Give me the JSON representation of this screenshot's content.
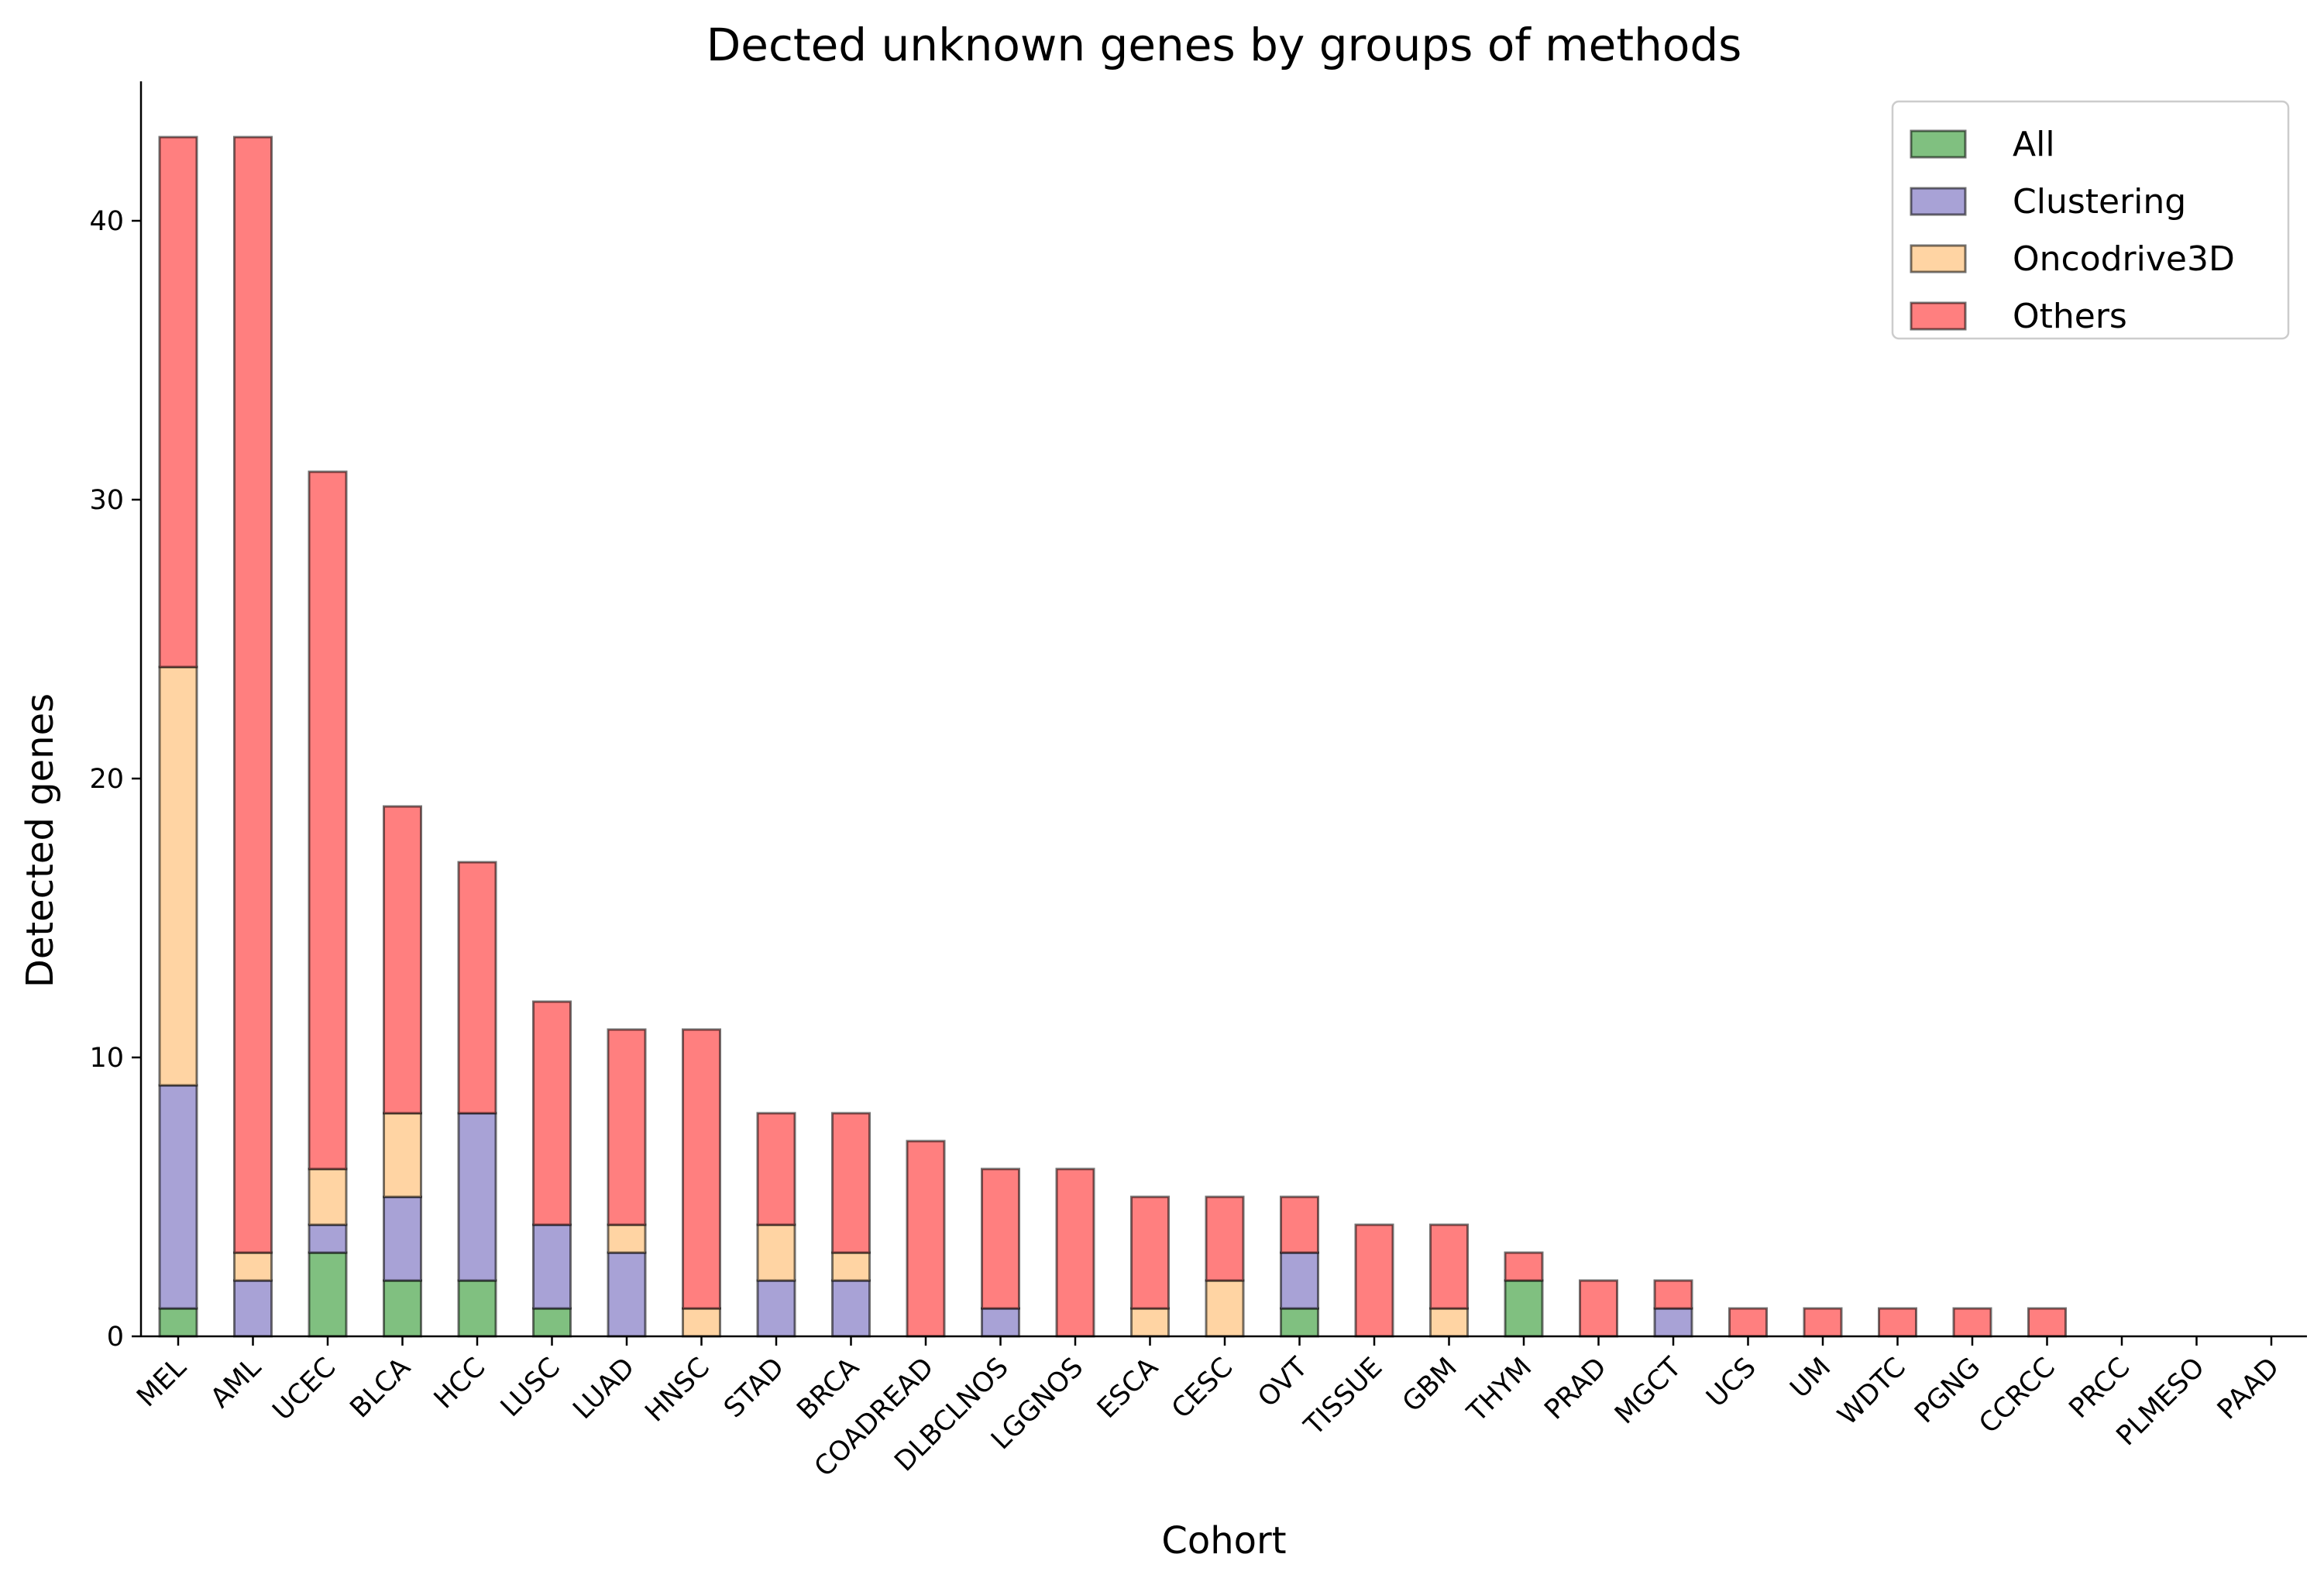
{
  "chart_data": {
    "type": "bar",
    "stacked": true,
    "title": "Dected unknown genes by groups of methods",
    "xlabel": "Cohort",
    "ylabel": "Detected genes",
    "ylim": [
      0,
      45
    ],
    "yticks": [
      0,
      10,
      20,
      30,
      40
    ],
    "grid": false,
    "legend_position": "top-right",
    "categories": [
      "MEL",
      "AML",
      "UCEC",
      "BLCA",
      "HCC",
      "LUSC",
      "LUAD",
      "HNSC",
      "STAD",
      "BRCA",
      "COADREAD",
      "DLBCLNOS",
      "LGGNOS",
      "ESCA",
      "CESC",
      "OVT",
      "TISSUE",
      "GBM",
      "THYM",
      "PRAD",
      "MGCT",
      "UCS",
      "UM",
      "WDTC",
      "PGNG",
      "CCRCC",
      "PRCC",
      "PLMESO",
      "PAAD"
    ],
    "series": [
      {
        "name": "All",
        "color": "#80c080",
        "values": [
          1,
          0,
          3,
          2,
          2,
          1,
          0,
          0,
          0,
          0,
          0,
          0,
          0,
          0,
          0,
          1,
          0,
          0,
          2,
          0,
          0,
          0,
          0,
          0,
          0,
          0,
          0,
          0,
          0
        ]
      },
      {
        "name": "Clustering",
        "color": "#a8a2d6",
        "values": [
          8,
          2,
          1,
          3,
          6,
          3,
          3,
          0,
          2,
          2,
          0,
          1,
          0,
          0,
          0,
          2,
          0,
          0,
          0,
          0,
          1,
          0,
          0,
          0,
          0,
          0,
          0,
          0,
          0
        ]
      },
      {
        "name": "Oncodrive3D",
        "color": "#ffd4a3",
        "values": [
          15,
          1,
          2,
          3,
          0,
          0,
          1,
          1,
          2,
          1,
          0,
          0,
          0,
          1,
          2,
          0,
          0,
          1,
          0,
          0,
          0,
          0,
          0,
          0,
          0,
          0,
          0,
          0,
          0
        ]
      },
      {
        "name": "Others",
        "color": "#ff7f7f",
        "values": [
          19,
          40,
          25,
          11,
          9,
          8,
          7,
          10,
          4,
          5,
          7,
          5,
          6,
          4,
          3,
          2,
          4,
          3,
          1,
          2,
          1,
          1,
          1,
          1,
          1,
          1,
          0,
          0,
          0
        ]
      }
    ]
  }
}
